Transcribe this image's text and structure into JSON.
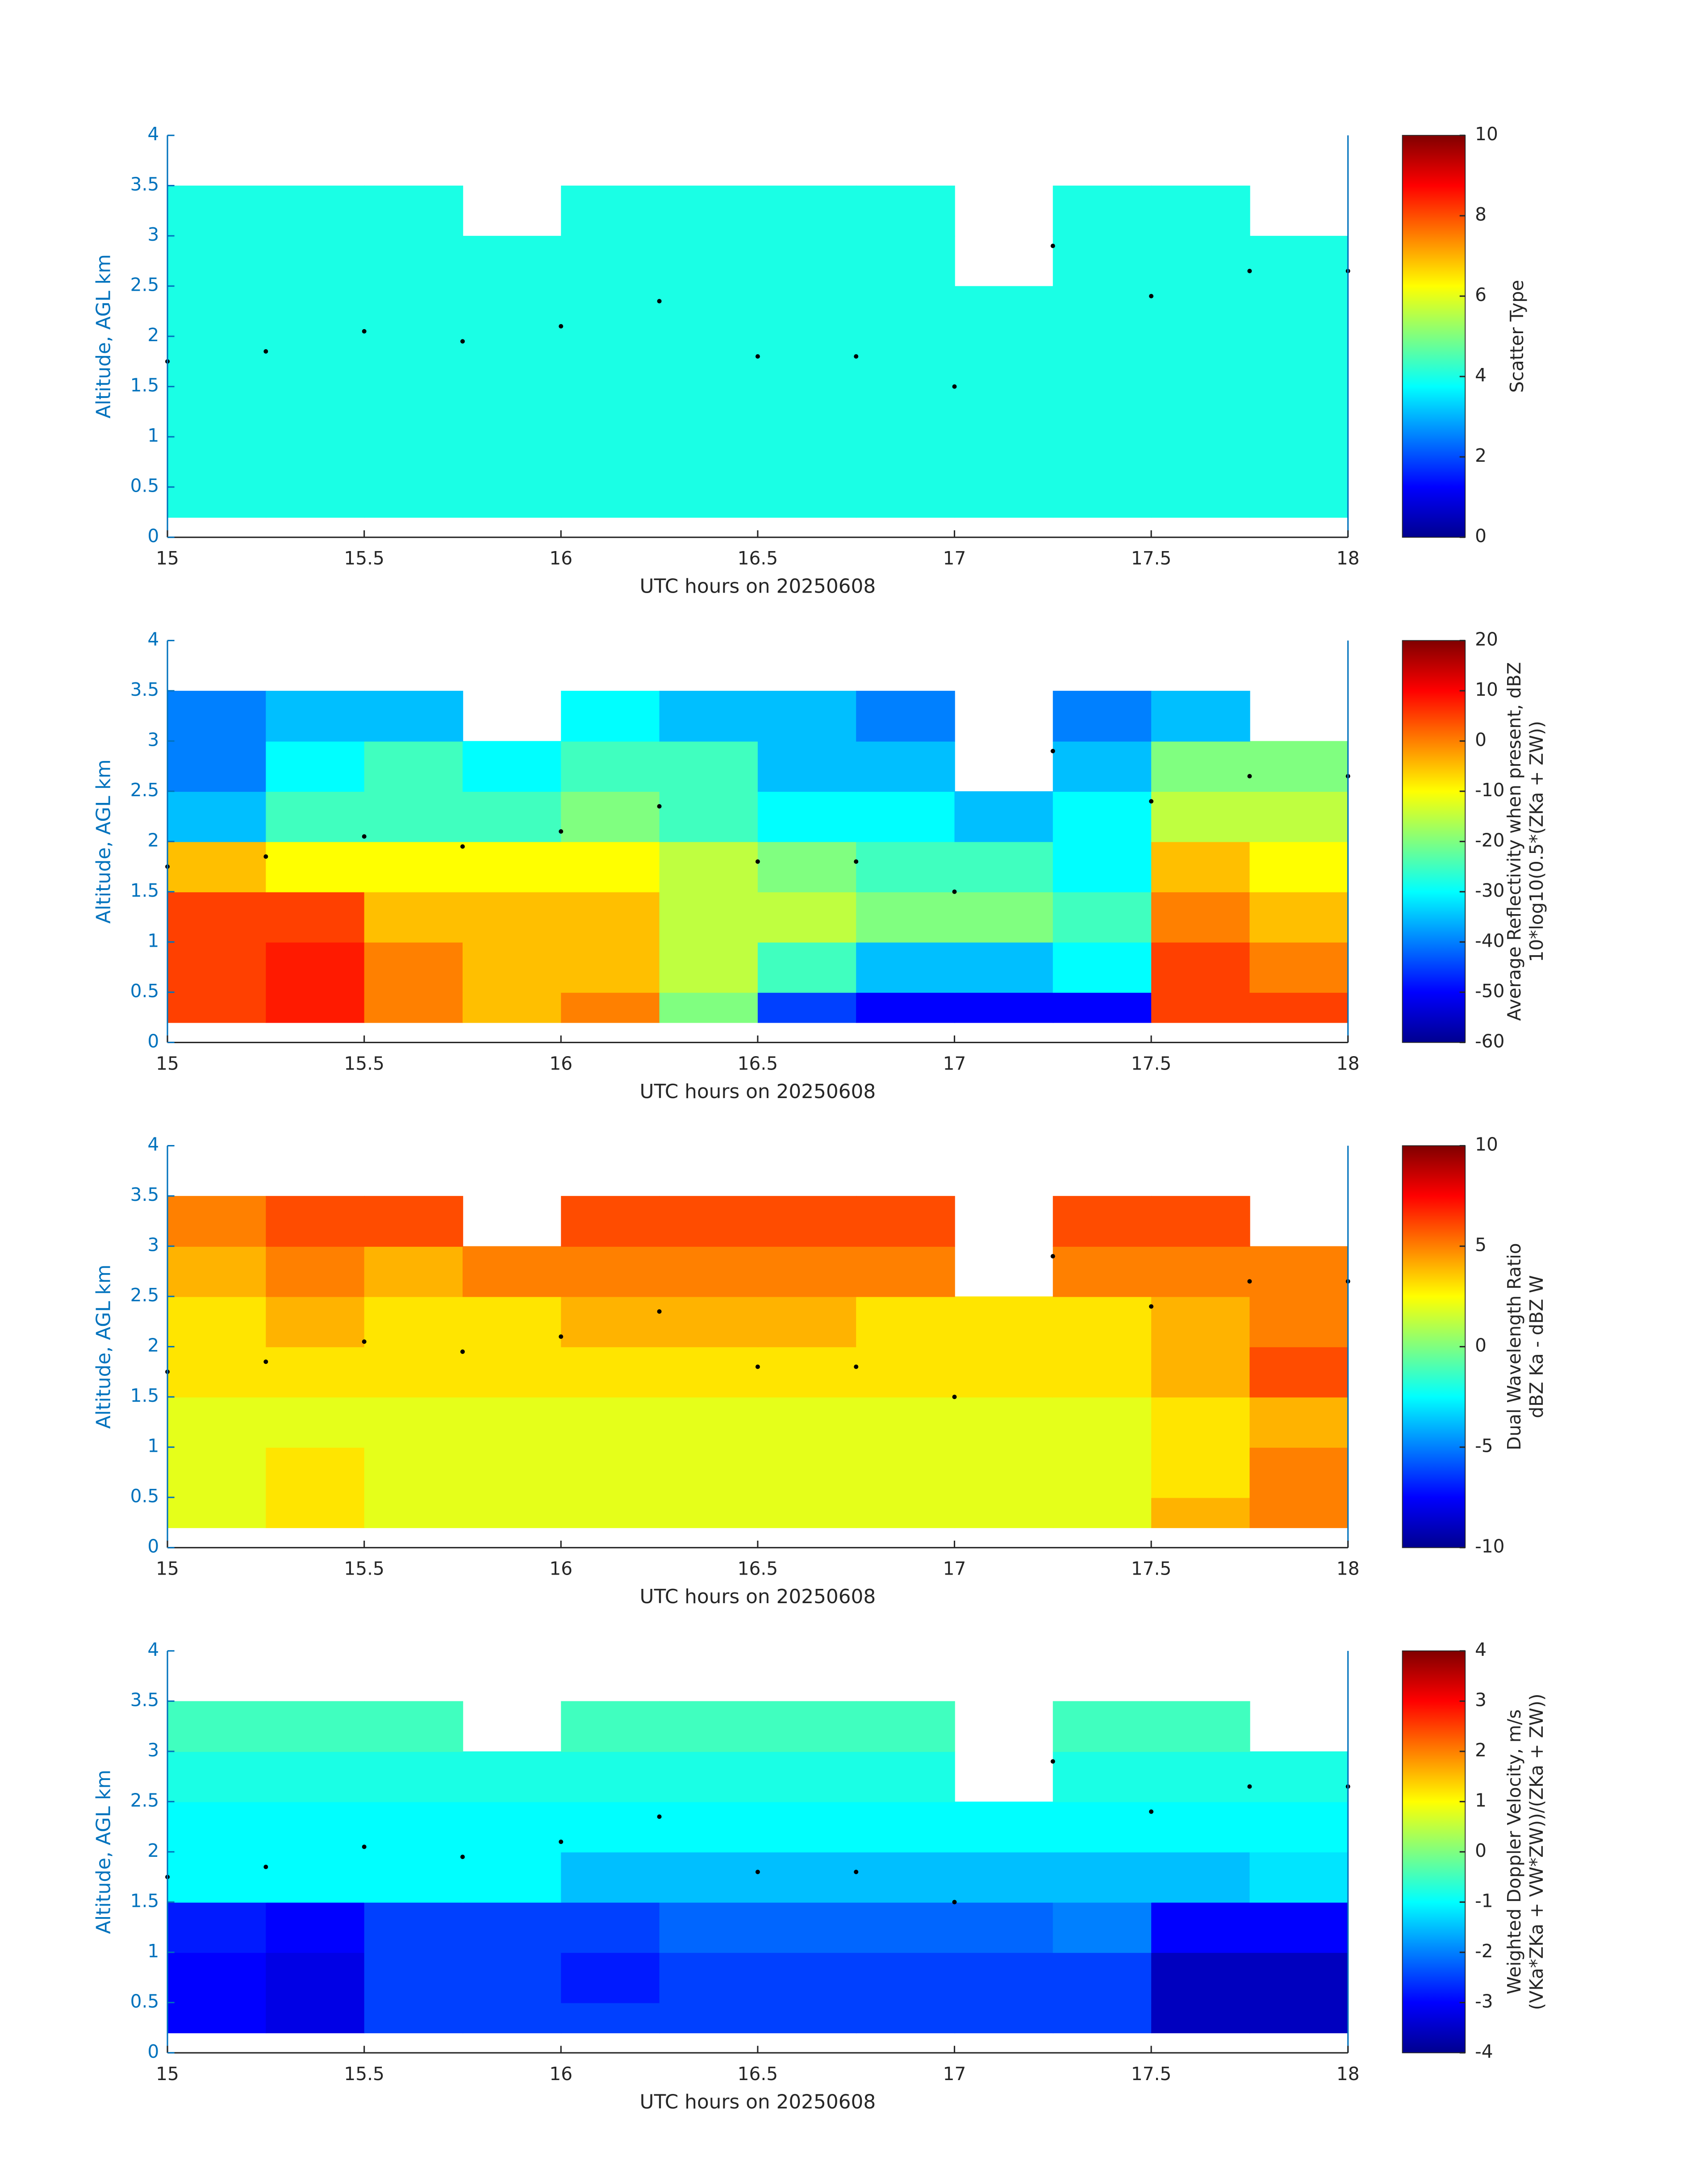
{
  "chart_data": [
    {
      "type": "heatmap",
      "xlabel": "UTC hours on 20250608",
      "ylabel": "Altitude, AGL km",
      "xlim": [
        15,
        18
      ],
      "xticks": [
        15,
        15.5,
        16,
        16.5,
        17,
        17.5,
        18
      ],
      "ylim": [
        0,
        4
      ],
      "yticks": [
        0,
        0.5,
        1,
        1.5,
        2,
        2.5,
        3,
        3.5,
        4
      ],
      "x_bins": [
        15,
        15.25,
        15.5,
        15.75,
        16,
        16.25,
        16.5,
        16.75,
        17,
        17.25,
        17.5,
        17.75,
        18
      ],
      "y_bins": [
        0.2,
        0.5,
        1,
        1.5,
        2,
        2.5,
        3,
        3.5
      ],
      "z": [
        [
          4,
          4,
          4,
          4,
          4,
          4,
          4,
          4,
          4,
          4,
          4,
          4
        ],
        [
          4,
          4,
          4,
          4,
          4,
          4,
          4,
          4,
          4,
          4,
          4,
          4
        ],
        [
          4,
          4,
          4,
          4,
          4,
          4,
          4,
          4,
          4,
          4,
          4,
          4
        ],
        [
          4,
          4,
          4,
          4,
          4,
          4,
          4,
          4,
          4,
          4,
          4,
          4
        ],
        [
          4,
          4,
          4,
          4,
          4,
          4,
          4,
          4,
          4,
          4,
          4,
          4
        ],
        [
          4,
          4,
          4,
          4,
          4,
          4,
          4,
          4,
          null,
          4,
          4,
          4
        ],
        [
          4,
          4,
          4,
          null,
          4,
          4,
          4,
          4,
          null,
          4,
          4,
          null
        ]
      ],
      "colorbar_label": [
        "Scatter Type"
      ],
      "clim": [
        0,
        10
      ],
      "cticks": [
        0,
        2,
        4,
        6,
        8,
        10
      ],
      "points": {
        "x": [
          15,
          15.25,
          15.5,
          15.75,
          16,
          16.25,
          16.5,
          16.75,
          17,
          17.25,
          17.5,
          17.75,
          18
        ],
        "y": [
          1.75,
          1.85,
          2.05,
          1.95,
          2.1,
          2.35,
          1.8,
          1.8,
          1.5,
          2.9,
          2.4,
          2.65,
          2.65
        ]
      }
    },
    {
      "type": "heatmap",
      "xlabel": "UTC hours on 20250608",
      "ylabel": "Altitude, AGL km",
      "xlim": [
        15,
        18
      ],
      "xticks": [
        15,
        15.5,
        16,
        16.5,
        17,
        17.5,
        18
      ],
      "ylim": [
        0,
        4
      ],
      "yticks": [
        0,
        0.5,
        1,
        1.5,
        2,
        2.5,
        3,
        3.5,
        4
      ],
      "x_bins": [
        15,
        15.25,
        15.5,
        15.75,
        16,
        16.25,
        16.5,
        16.75,
        17,
        17.25,
        17.5,
        17.75,
        18
      ],
      "y_bins": [
        0.2,
        0.5,
        1,
        1.5,
        2,
        2.5,
        3,
        3.5
      ],
      "z": [
        [
          5,
          8,
          0,
          -5,
          0,
          -20,
          -45,
          -50,
          -50,
          -50,
          5,
          5
        ],
        [
          5,
          8,
          0,
          -5,
          -5,
          -15,
          -25,
          -35,
          -35,
          -30,
          5,
          0
        ],
        [
          5,
          5,
          -5,
          -5,
          -5,
          -15,
          -15,
          -20,
          -20,
          -25,
          0,
          -5
        ],
        [
          -5,
          -10,
          -10,
          -10,
          -10,
          -15,
          -20,
          -25,
          -25,
          -30,
          -5,
          -10
        ],
        [
          -35,
          -25,
          -25,
          -25,
          -20,
          -25,
          -30,
          -30,
          -35,
          -30,
          -15,
          -15
        ],
        [
          -40,
          -30,
          -25,
          -30,
          -25,
          -25,
          -35,
          -35,
          null,
          -35,
          -20,
          -20
        ],
        [
          -40,
          -35,
          -35,
          null,
          -30,
          -35,
          -35,
          -40,
          null,
          -40,
          -35,
          null
        ]
      ],
      "colorbar_label": [
        "Average Reflectivity when present, dBZ",
        "10*log10(0.5*(ZKa + ZW))"
      ],
      "clim": [
        -60,
        20
      ],
      "cticks": [
        -60,
        -50,
        -40,
        -30,
        -20,
        -10,
        0,
        10,
        20
      ],
      "points": {
        "x": [
          15,
          15.25,
          15.5,
          15.75,
          16,
          16.25,
          16.5,
          16.75,
          17,
          17.25,
          17.5,
          17.75,
          18
        ],
        "y": [
          1.75,
          1.85,
          2.05,
          1.95,
          2.1,
          2.35,
          1.8,
          1.8,
          1.5,
          2.9,
          2.4,
          2.65,
          2.65
        ]
      }
    },
    {
      "type": "heatmap",
      "xlabel": "UTC hours on 20250608",
      "ylabel": "Altitude, AGL km",
      "xlim": [
        15,
        18
      ],
      "xticks": [
        15,
        15.5,
        16,
        16.5,
        17,
        17.5,
        18
      ],
      "ylim": [
        0,
        4
      ],
      "yticks": [
        0,
        0.5,
        1,
        1.5,
        2,
        2.5,
        3,
        3.5,
        4
      ],
      "x_bins": [
        15,
        15.25,
        15.5,
        15.75,
        16,
        16.25,
        16.5,
        16.75,
        17,
        17.25,
        17.5,
        17.75,
        18
      ],
      "y_bins": [
        0.2,
        0.5,
        1,
        1.5,
        2,
        2.5,
        3,
        3.5
      ],
      "z": [
        [
          2,
          3,
          2,
          2,
          2,
          2,
          2,
          2,
          2,
          2,
          4,
          5
        ],
        [
          2,
          3,
          2,
          2,
          2,
          2,
          2,
          2,
          2,
          2,
          3,
          5
        ],
        [
          2,
          2,
          2,
          2,
          2,
          2,
          2,
          2,
          2,
          2,
          3,
          4
        ],
        [
          3,
          3,
          3,
          3,
          3,
          3,
          3,
          3,
          3,
          3,
          4,
          6
        ],
        [
          3,
          4,
          3,
          3,
          4,
          4,
          4,
          3,
          3,
          3,
          4,
          5
        ],
        [
          4,
          5,
          4,
          5,
          5,
          5,
          5,
          5,
          null,
          5,
          5,
          5
        ],
        [
          5,
          6,
          6,
          null,
          6,
          6,
          6,
          6,
          null,
          6,
          6,
          null
        ]
      ],
      "colorbar_label": [
        "Dual Wavelength Ratio",
        "dBZ Ka - dBZ W"
      ],
      "clim": [
        -10,
        10
      ],
      "cticks": [
        -10,
        -5,
        0,
        5,
        10
      ],
      "points": {
        "x": [
          15,
          15.25,
          15.5,
          15.75,
          16,
          16.25,
          16.5,
          16.75,
          17,
          17.25,
          17.5,
          17.75,
          18
        ],
        "y": [
          1.75,
          1.85,
          2.05,
          1.95,
          2.1,
          2.35,
          1.8,
          1.8,
          1.5,
          2.9,
          2.4,
          2.65,
          2.65
        ]
      }
    },
    {
      "type": "heatmap",
      "xlabel": "UTC hours on 20250608",
      "ylabel": "Altitude, AGL km",
      "xlim": [
        15,
        18
      ],
      "xticks": [
        15,
        15.5,
        16,
        16.5,
        17,
        17.5,
        18
      ],
      "ylim": [
        0,
        4
      ],
      "yticks": [
        0,
        0.5,
        1,
        1.5,
        2,
        2.5,
        3,
        3.5,
        4
      ],
      "x_bins": [
        15,
        15.25,
        15.5,
        15.75,
        16,
        16.25,
        16.5,
        16.75,
        17,
        17.25,
        17.5,
        17.75,
        18
      ],
      "y_bins": [
        0.2,
        0.5,
        1,
        1.5,
        2,
        2.5,
        3,
        3.5
      ],
      "z": [
        [
          -3,
          -3.2,
          -2.5,
          -2.5,
          -2.5,
          -2.5,
          -2.5,
          -2.5,
          -2.5,
          -2.5,
          -3.5,
          -3.5
        ],
        [
          -3,
          -3.2,
          -2.5,
          -2.5,
          -2.8,
          -2.5,
          -2.5,
          -2.5,
          -2.5,
          -2.5,
          -3.5,
          -3.5
        ],
        [
          -2.8,
          -3,
          -2.5,
          -2.5,
          -2.5,
          -2.2,
          -2.2,
          -2.2,
          -2.2,
          -2,
          -3,
          -3
        ],
        [
          -1,
          -1,
          -1,
          -1,
          -1.5,
          -1.5,
          -1.5,
          -1.5,
          -1.5,
          -1.5,
          -1.5,
          -1.2
        ],
        [
          -1,
          -1,
          -1,
          -1,
          -1,
          -1,
          -1,
          -1,
          -1,
          -1,
          -1,
          -1
        ],
        [
          -0.8,
          -0.8,
          -0.8,
          -0.8,
          -0.8,
          -0.8,
          -0.8,
          -0.8,
          null,
          -0.8,
          -0.8,
          -0.8
        ],
        [
          -0.5,
          -0.5,
          -0.5,
          null,
          -0.5,
          -0.5,
          -0.5,
          -0.5,
          null,
          -0.5,
          -0.5,
          null
        ]
      ],
      "colorbar_label": [
        "Weighted Doppler Velocity, m/s",
        "(VKa*ZKa + VW*ZW))/(ZKa + ZW))"
      ],
      "clim": [
        -4,
        4
      ],
      "cticks": [
        -4,
        -3,
        -2,
        -1,
        0,
        1,
        2,
        3,
        4
      ],
      "points": {
        "x": [
          15,
          15.25,
          15.5,
          15.75,
          16,
          16.25,
          16.5,
          16.75,
          17,
          17.25,
          17.5,
          17.75,
          18
        ],
        "y": [
          1.75,
          1.85,
          2.05,
          1.95,
          2.1,
          2.35,
          1.8,
          1.8,
          1.5,
          2.9,
          2.4,
          2.65,
          2.65
        ]
      }
    }
  ]
}
